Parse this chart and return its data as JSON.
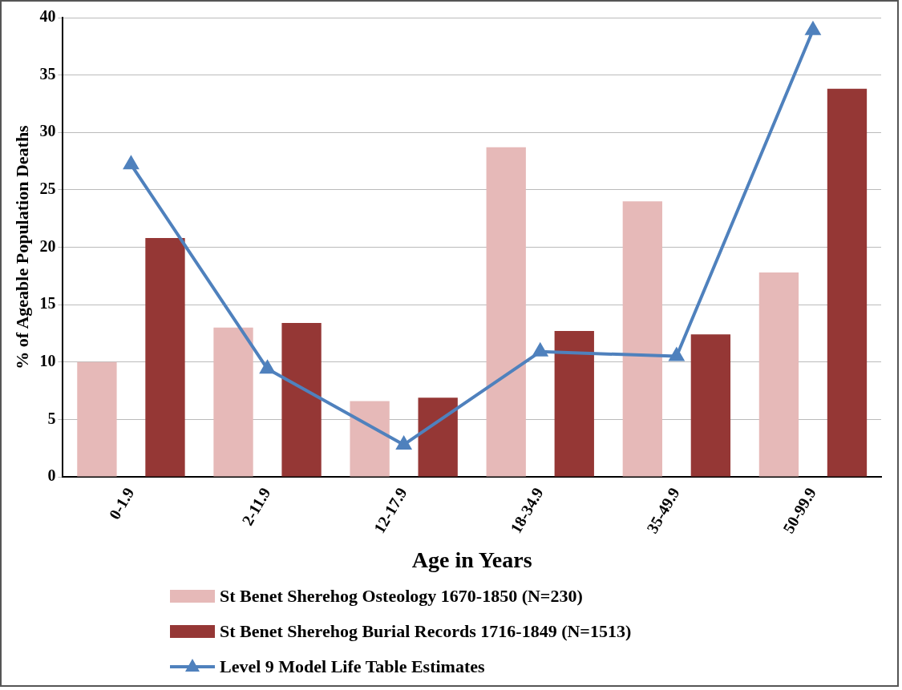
{
  "chart_data": {
    "type": "bar",
    "xlabel": "Age in Years",
    "ylabel": "% of Ageable Population Deaths",
    "categories": [
      "0-1.9",
      "2-11.9",
      "12-17.9",
      "18-34.9",
      "35-49.9",
      "50-99.9"
    ],
    "series": [
      {
        "name": "St Benet Sherehog Osteology 1670-1850 (N=230)",
        "color": "#e6b9b8",
        "values": [
          10.0,
          13.0,
          6.6,
          28.7,
          24.0,
          17.8
        ]
      },
      {
        "name": "St Benet Sherehog Burial Records 1716-1849 (N=1513)",
        "color": "#953735",
        "values": [
          20.8,
          13.4,
          6.9,
          12.7,
          12.4,
          33.8
        ]
      },
      {
        "name": "Level 9 Model Life Table Estimates",
        "color": "#4f81bd",
        "type": "line",
        "marker": "triangle",
        "values": [
          27.2,
          9.4,
          2.8,
          10.9,
          10.5,
          38.9
        ]
      }
    ],
    "ylim": [
      0,
      40
    ],
    "yticks": [
      0,
      5,
      10,
      15,
      20,
      25,
      30,
      35,
      40
    ],
    "grid": "y",
    "legend": "bottom"
  }
}
